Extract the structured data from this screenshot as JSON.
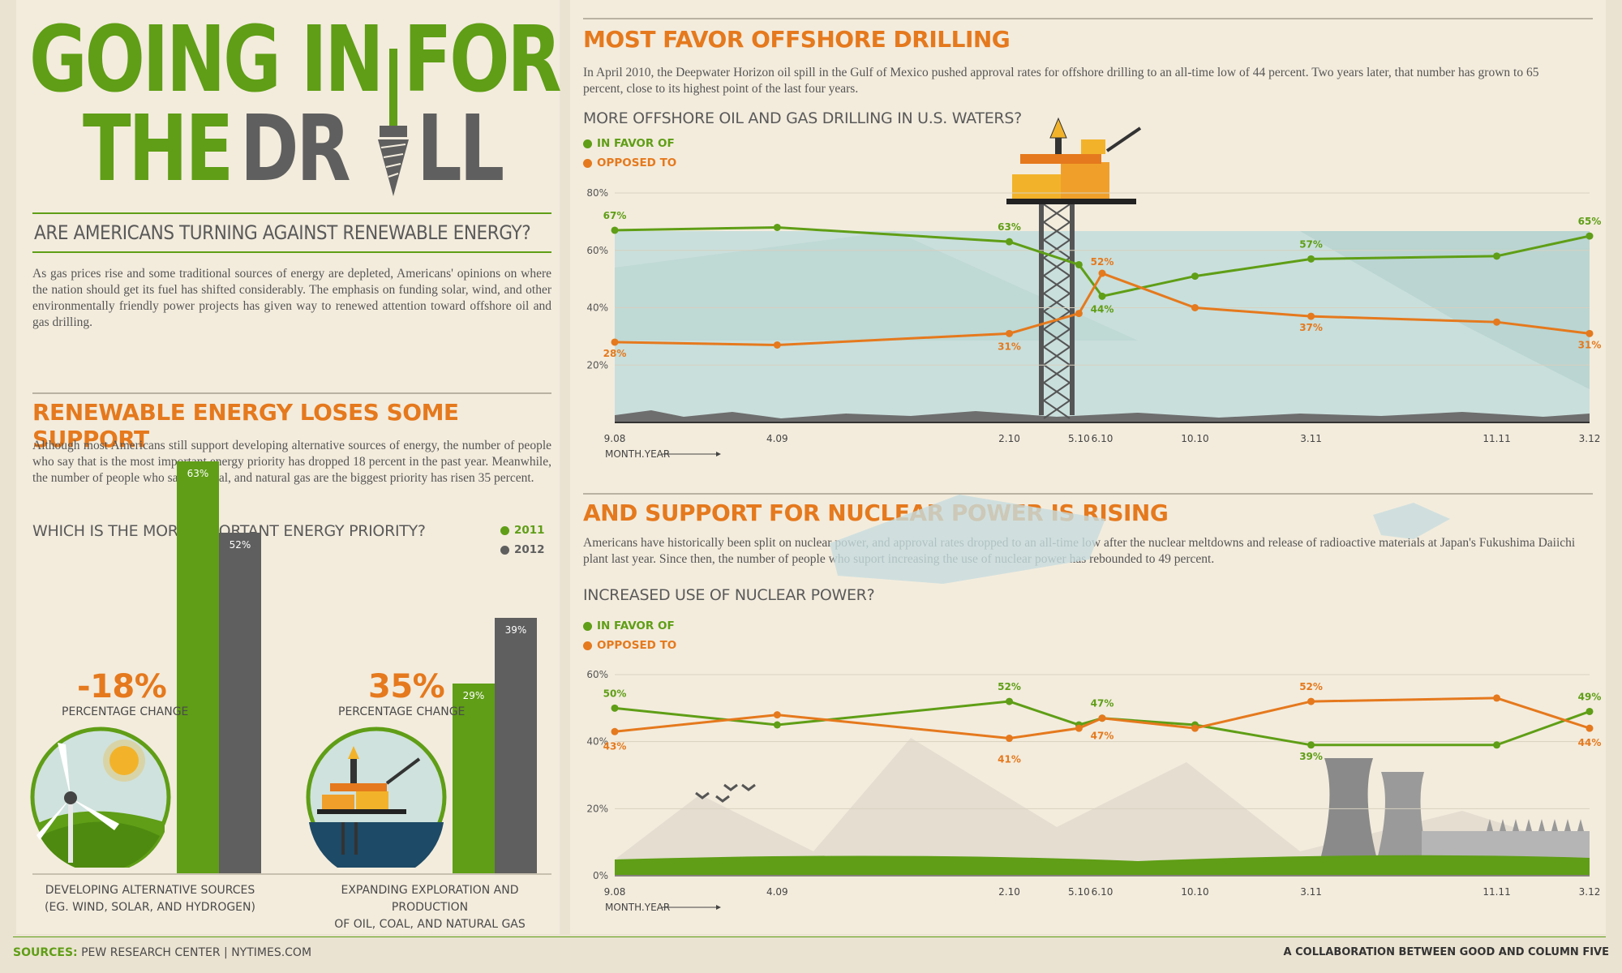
{
  "header": {
    "title_line1": "GOING IN FOR",
    "title_line2a": "THE",
    "title_line2b": "DR",
    "title_line2c": "LL",
    "subtitle": "ARE AMERICANS TURNING AGAINST RENEWABLE ENERGY?",
    "intro": "As gas prices rise and some traditional sources of energy are depleted, Americans' opinions on where the nation should get its fuel has shifted considerably. The emphasis on funding solar, wind, and other environmentally friendly power projects has given way to renewed attention toward offshore oil and gas drilling."
  },
  "renewable": {
    "heading": "RENEWABLE ENERGY LOSES SOME SUPPORT",
    "text": "Although most Americans still support developing alternative sources of energy, the number of people who say that is the most important energy priority has dropped 18 percent in the past year. Meanwhile, the number of people who say oil, coal, and natural gas are the biggest priority has risen 35 percent.",
    "question": "WHICH IS THE MORE IMPORTANT ENERGY PRIORITY?",
    "legend_2011": "2011",
    "legend_2012": "2012",
    "change_left": "-18%",
    "change_right": "35%",
    "change_label": "PERCENTAGE CHANGE",
    "caption_left_1": "DEVELOPING ALTERNATIVE SOURCES",
    "caption_left_2": "(EG. WIND, SOLAR, AND HYDROGEN)",
    "caption_right_1": "EXPANDING EXPLORATION AND PRODUCTION",
    "caption_right_2": "OF OIL, COAL, AND NATURAL GAS"
  },
  "offshore": {
    "heading": "MOST FAVOR OFFSHORE DRILLING",
    "text": "In April 2010, the Deepwater Horizon oil spill in the Gulf of Mexico pushed approval rates for offshore drilling to an all-time low of 44 percent. Two years later, that number has grown to 65 percent, close to its highest point of the last four years.",
    "question": "MORE OFFSHORE OIL AND GAS DRILLING IN U.S. WATERS?",
    "legend_favor": "IN FAVOR OF",
    "legend_opposed": "OPPOSED TO",
    "axis_label": "MONTH.YEAR"
  },
  "nuclear": {
    "heading": "AND SUPPORT FOR NUCLEAR POWER IS RISING",
    "text": "Americans have historically been split on nuclear power, and approval rates dropped to an all-time low after the nuclear meltdowns and release of radioactive materials at Japan's Fukushima Daiichi plant last year. Since then, the number of people who suport increasing the use of nuclear power has rebounded to 49 percent.",
    "question": "INCREASED USE OF NUCLEAR POWER?",
    "legend_favor": "IN FAVOR OF",
    "legend_opposed": "OPPOSED TO",
    "axis_label": "MONTH.YEAR"
  },
  "footer": {
    "sources_label": "SOURCES:",
    "sources": "PEW RESEARCH CENTER | NYTIMES.COM",
    "credit": "A COLLABORATION BETWEEN GOOD AND COLUMN FIVE"
  },
  "colors": {
    "green": "#5f9e16",
    "orange": "#e5791d",
    "gray": "#5f5f5f"
  },
  "chart_data": [
    {
      "id": "energy-priority",
      "type": "bar",
      "title": "WHICH IS THE MORE IMPORTANT ENERGY PRIORITY?",
      "categories": [
        "DEVELOPING ALTERNATIVE SOURCES (EG. WIND, SOLAR, AND HYDROGEN)",
        "EXPANDING EXPLORATION AND PRODUCTION OF OIL, COAL, AND NATURAL GAS"
      ],
      "series": [
        {
          "name": "2011",
          "values": [
            63,
            29
          ],
          "labels": [
            "63%",
            "29%"
          ]
        },
        {
          "name": "2012",
          "values": [
            52,
            39
          ],
          "labels": [
            "52%",
            "39%"
          ]
        }
      ],
      "ylim": [
        0,
        70
      ]
    },
    {
      "id": "offshore",
      "type": "line",
      "title": "MORE OFFSHORE OIL AND GAS DRILLING IN U.S. WATERS?",
      "x": [
        "9.08",
        "4.09",
        "2.10",
        "5.10",
        "6.10",
        "10.10",
        "3.11",
        "11.11",
        "3.12"
      ],
      "x_months": [
        0,
        7,
        17,
        20,
        21,
        25,
        30,
        38,
        42
      ],
      "yticks": [
        "20%",
        "40%",
        "60%",
        "80%"
      ],
      "ylim": [
        0,
        80
      ],
      "xlabel": "MONTH.YEAR",
      "series": [
        {
          "name": "IN FAVOR OF",
          "values": [
            67,
            68,
            63,
            55,
            44,
            51,
            57,
            58,
            65
          ],
          "labels": [
            "67%",
            "",
            "63%",
            "",
            "44%",
            "",
            "57%",
            "",
            "65%"
          ]
        },
        {
          "name": "OPPOSED TO",
          "values": [
            28,
            27,
            31,
            38,
            52,
            40,
            37,
            35,
            31
          ],
          "labels": [
            "28%",
            "",
            "31%",
            "",
            "52%",
            "",
            "37%",
            "",
            "31%"
          ]
        }
      ]
    },
    {
      "id": "nuclear",
      "type": "line",
      "title": "INCREASED USE OF NUCLEAR POWER?",
      "x": [
        "9.08",
        "4.09",
        "2.10",
        "5.10",
        "6.10",
        "10.10",
        "3.11",
        "11.11",
        "3.12"
      ],
      "x_months": [
        0,
        7,
        17,
        20,
        21,
        25,
        30,
        38,
        42
      ],
      "yticks": [
        "0%",
        "20%",
        "40%",
        "60%"
      ],
      "ylim": [
        0,
        60
      ],
      "xlabel": "MONTH.YEAR",
      "series": [
        {
          "name": "IN FAVOR OF",
          "values": [
            50,
            45,
            52,
            45,
            47,
            45,
            39,
            39,
            49
          ],
          "labels": [
            "50%",
            "",
            "52%",
            "",
            "47%",
            "",
            "39%",
            "",
            "49%"
          ]
        },
        {
          "name": "OPPOSED TO",
          "values": [
            43,
            48,
            41,
            44,
            47,
            44,
            52,
            53,
            44
          ],
          "labels": [
            "43%",
            "",
            "41%",
            "",
            "47%",
            "",
            "52%",
            "",
            "44%"
          ]
        }
      ]
    }
  ]
}
